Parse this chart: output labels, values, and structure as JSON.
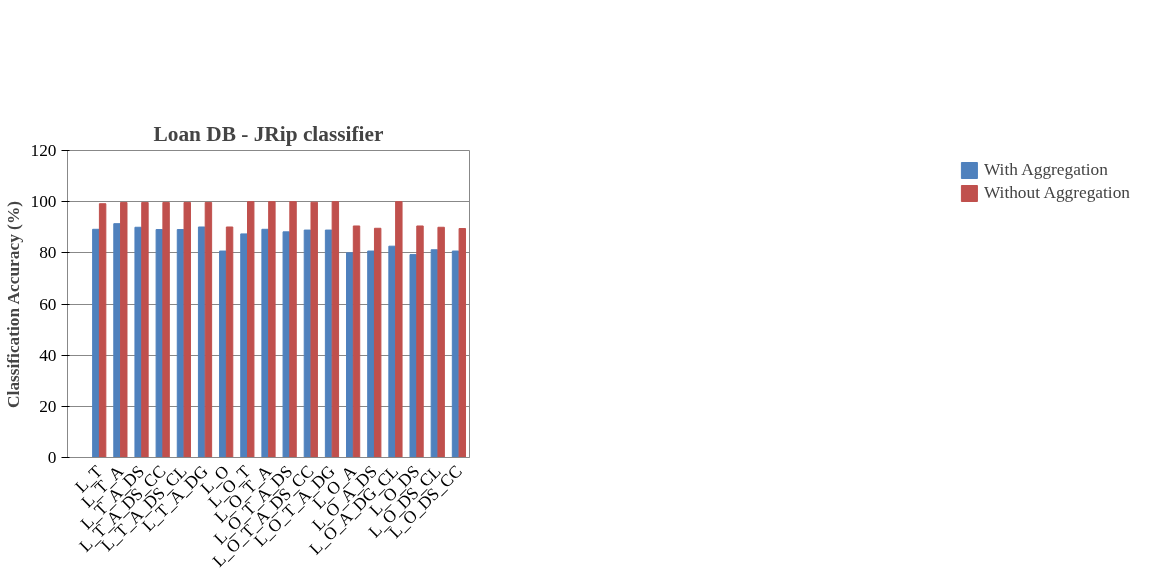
{
  "chart_data": {
    "type": "bar",
    "title": "Loan DB - JRip classifier",
    "ylabel": "Classification Accuracy (%)",
    "categories": [
      null,
      "L_T",
      "L_T_A",
      "L_T_A_DS",
      "L_T_A_DS_CC",
      "L_T_A_DS_CL",
      "L_T_A_DG",
      "L_O",
      "L_O_T",
      "L_O_T_A",
      "L_O_T_A_DS",
      "L_O_T_A_DS_CC",
      "L_O_T_A_DG",
      "L_O_A",
      "L_O_A_DS",
      "L_O_A_DG_CL",
      "L_O_DS",
      "L_O_DS_CL",
      "L_O_DS_CC"
    ],
    "series": [
      {
        "name": "With Aggregation",
        "color": "#4f81bd",
        "values": [
          null,
          89.2,
          91.4,
          90.0,
          89.1,
          89.1,
          90.1,
          80.7,
          87.4,
          89.2,
          88.2,
          88.9,
          88.9,
          80.0,
          80.7,
          82.6,
          79.3,
          81.2,
          80.7
        ]
      },
      {
        "name": "Without Aggregation",
        "color": "#c0504d",
        "values": [
          null,
          99.2,
          99.7,
          99.7,
          99.7,
          99.7,
          99.7,
          90.1,
          100,
          100,
          100,
          99.8,
          100,
          90.5,
          89.6,
          100,
          90.5,
          90.0,
          89.5
        ]
      }
    ],
    "ylim": [
      0,
      120
    ],
    "yticks": [
      0,
      20,
      40,
      60,
      80,
      100,
      120
    ],
    "grid": "y",
    "legend": "right"
  }
}
